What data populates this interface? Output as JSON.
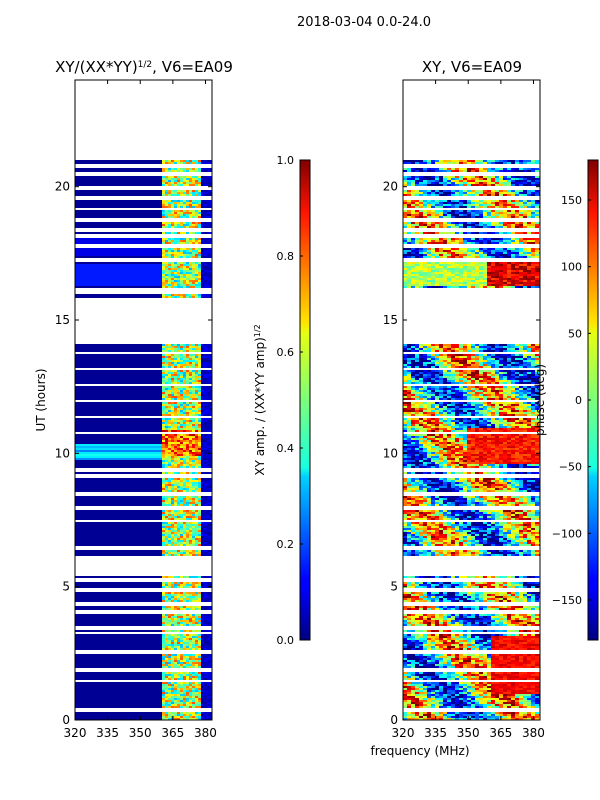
{
  "chart_data": {
    "suptitle": "2018-03-04 0.0-24.0",
    "shared_xlabel": "frequency (MHz)",
    "panels": [
      {
        "type": "heatmap",
        "title_main": "XY/(XX*YY)",
        "title_sup": "1/2",
        "title_tail": ", V6=EA09",
        "ylabel": "UT (hours)",
        "x_ticks": [
          320,
          335,
          350,
          365,
          380
        ],
        "y_ticks": [
          0,
          5,
          10,
          15,
          20
        ],
        "xlim": [
          320,
          383
        ],
        "ylim": [
          0,
          24
        ],
        "data_extent_hours": [
          0,
          21
        ],
        "colorbar": {
          "label_main": "XY amp. / (XX*YY amp)",
          "label_sup": "1/2",
          "range": [
            0.0,
            1.0
          ],
          "ticks": [
            "0.0",
            "0.2",
            "0.4",
            "0.6",
            "0.8",
            "1.0"
          ]
        }
      },
      {
        "type": "heatmap",
        "title_main": "XY, V6=EA09",
        "x_ticks": [
          320,
          335,
          350,
          365,
          380
        ],
        "y_ticks": [
          0,
          5,
          10,
          15,
          20
        ],
        "xlim": [
          320,
          383
        ],
        "ylim": [
          0,
          24
        ],
        "data_extent_hours": [
          0,
          21
        ],
        "colorbar": {
          "label_main": "phase (deg)",
          "range": [
            -180,
            180
          ],
          "ticks": [
            "−150",
            "−100",
            "−50",
            "0",
            "50",
            "100",
            "150"
          ]
        }
      }
    ]
  }
}
